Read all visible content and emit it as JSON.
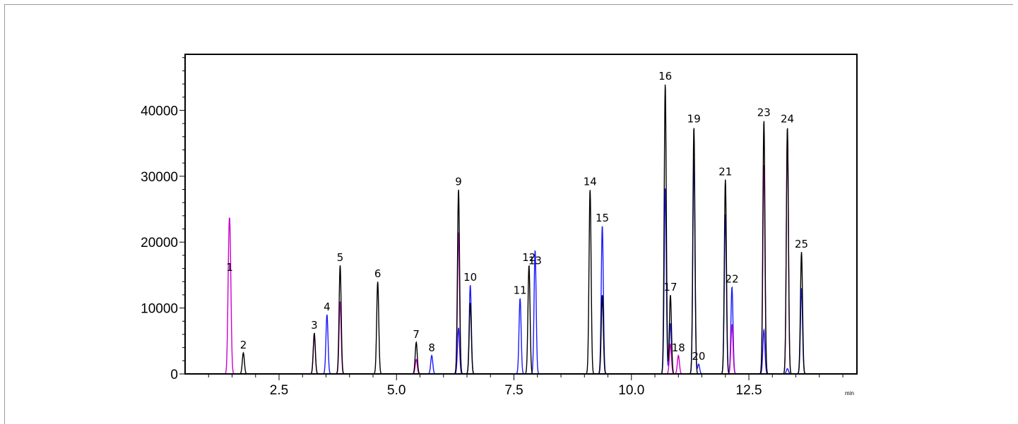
{
  "chart_data": {
    "type": "line",
    "title": "",
    "xlabel": "",
    "ylabel": "",
    "x_unit": "min",
    "xlim": [
      0.5,
      14.8
    ],
    "ylim": [
      0,
      48500
    ],
    "xticks": [
      2.5,
      5.0,
      7.5,
      10.0,
      12.5
    ],
    "xtick_labels": [
      "2.5",
      "5.0",
      "7.5",
      "10.0",
      "12.5"
    ],
    "yticks": [
      0,
      10000,
      20000,
      30000,
      40000
    ],
    "ytick_labels": [
      "0",
      "10000",
      "20000",
      "30000",
      "40000"
    ],
    "grid": false,
    "colors": {
      "black": "#000000",
      "magenta": "#cc00cc",
      "blue": "#1a1aff"
    },
    "peak_labels": [
      {
        "label": "1",
        "x": 1.45,
        "y": 15000
      },
      {
        "label": "2",
        "x": 1.74,
        "y": 3200
      },
      {
        "label": "3",
        "x": 3.25,
        "y": 6200
      },
      {
        "label": "4",
        "x": 3.52,
        "y": 9000
      },
      {
        "label": "5",
        "x": 3.8,
        "y": 16500
      },
      {
        "label": "6",
        "x": 4.6,
        "y": 14000
      },
      {
        "label": "7",
        "x": 5.42,
        "y": 4800
      },
      {
        "label": "8",
        "x": 5.75,
        "y": 2800
      },
      {
        "label": "9",
        "x": 6.32,
        "y": 28000
      },
      {
        "label": "10",
        "x": 6.57,
        "y": 13500
      },
      {
        "label": "11",
        "x": 7.63,
        "y": 11500
      },
      {
        "label": "12",
        "x": 7.82,
        "y": 16500
      },
      {
        "label": "13",
        "x": 7.95,
        "y": 16000
      },
      {
        "label": "14",
        "x": 9.12,
        "y": 28000
      },
      {
        "label": "15",
        "x": 9.38,
        "y": 22500
      },
      {
        "label": "16",
        "x": 10.72,
        "y": 44000
      },
      {
        "label": "17",
        "x": 10.83,
        "y": 12000
      },
      {
        "label": "18",
        "x": 11.0,
        "y": 2800
      },
      {
        "label": "19",
        "x": 11.33,
        "y": 37500
      },
      {
        "label": "20",
        "x": 11.43,
        "y": 1500
      },
      {
        "label": "21",
        "x": 12.0,
        "y": 29500
      },
      {
        "label": "22",
        "x": 12.14,
        "y": 13200
      },
      {
        "label": "23",
        "x": 12.82,
        "y": 38500
      },
      {
        "label": "24",
        "x": 13.32,
        "y": 37500
      },
      {
        "label": "25",
        "x": 13.62,
        "y": 18500
      }
    ],
    "series": [
      {
        "color": "black",
        "peaks": [
          {
            "x": 1.74,
            "y": 3200
          },
          {
            "x": 3.25,
            "y": 6200
          },
          {
            "x": 3.8,
            "y": 16500
          },
          {
            "x": 4.6,
            "y": 14000
          },
          {
            "x": 5.42,
            "y": 4800
          },
          {
            "x": 6.32,
            "y": 28000
          },
          {
            "x": 6.57,
            "y": 10800
          },
          {
            "x": 7.82,
            "y": 16500
          },
          {
            "x": 9.12,
            "y": 28000
          },
          {
            "x": 9.38,
            "y": 12000
          },
          {
            "x": 10.72,
            "y": 44000
          },
          {
            "x": 10.83,
            "y": 12000
          },
          {
            "x": 11.33,
            "y": 37500
          },
          {
            "x": 12.0,
            "y": 29500
          },
          {
            "x": 12.82,
            "y": 38500
          },
          {
            "x": 13.32,
            "y": 37500
          },
          {
            "x": 13.62,
            "y": 18500
          }
        ]
      },
      {
        "color": "magenta",
        "peaks": [
          {
            "x": 1.43,
            "y": 15000
          },
          {
            "x": 1.46,
            "y": 15000
          },
          {
            "x": 3.25,
            "y": 5800
          },
          {
            "x": 3.8,
            "y": 11000
          },
          {
            "x": 5.42,
            "y": 2200
          },
          {
            "x": 6.32,
            "y": 21500
          },
          {
            "x": 10.83,
            "y": 4500
          },
          {
            "x": 11.0,
            "y": 2800
          },
          {
            "x": 12.14,
            "y": 7500
          },
          {
            "x": 12.82,
            "y": 31800
          },
          {
            "x": 13.32,
            "y": 36800
          }
        ]
      },
      {
        "color": "blue",
        "peaks": [
          {
            "x": 3.52,
            "y": 9000
          },
          {
            "x": 5.75,
            "y": 2800
          },
          {
            "x": 6.32,
            "y": 7000
          },
          {
            "x": 6.57,
            "y": 13500
          },
          {
            "x": 7.63,
            "y": 11500
          },
          {
            "x": 7.95,
            "y": 16000
          },
          {
            "x": 7.95,
            "y": 2800
          },
          {
            "x": 9.38,
            "y": 22500
          },
          {
            "x": 10.72,
            "y": 28200
          },
          {
            "x": 10.83,
            "y": 7700
          },
          {
            "x": 11.33,
            "y": 32800
          },
          {
            "x": 11.43,
            "y": 1500
          },
          {
            "x": 12.0,
            "y": 24200
          },
          {
            "x": 12.14,
            "y": 13200
          },
          {
            "x": 12.82,
            "y": 6700
          },
          {
            "x": 13.32,
            "y": 800
          },
          {
            "x": 13.62,
            "y": 13000
          }
        ]
      }
    ]
  }
}
